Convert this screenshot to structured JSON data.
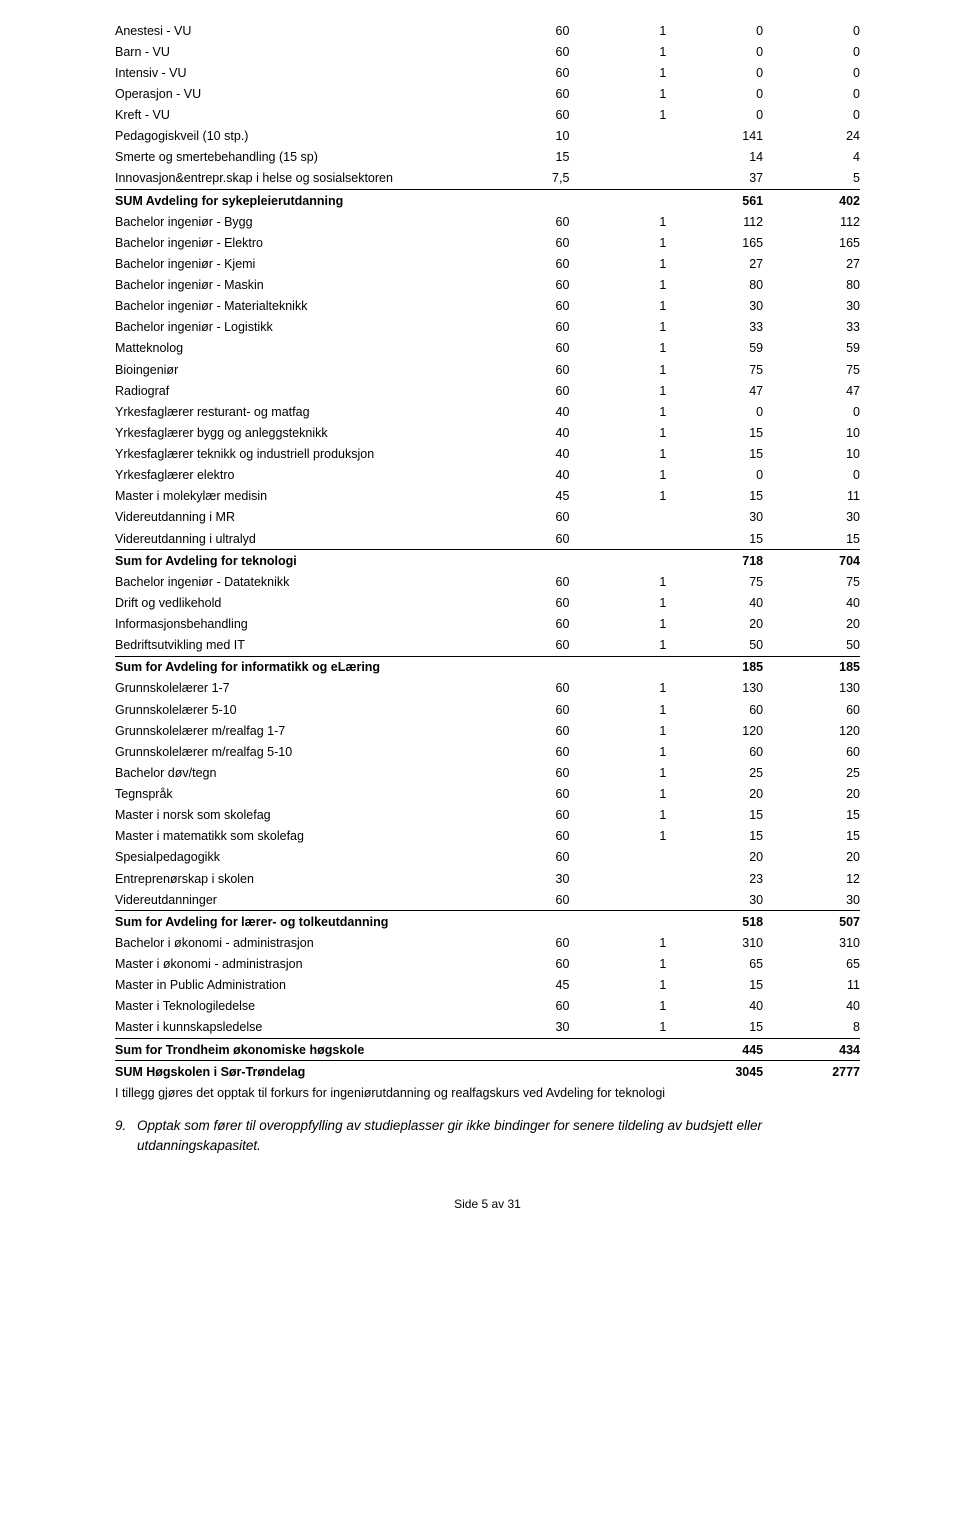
{
  "rows": [
    {
      "label": "Anestesi - VU",
      "a": "60",
      "b": "1",
      "c": "0",
      "d": "0",
      "bold": false,
      "ul": false
    },
    {
      "label": "Barn - VU",
      "a": "60",
      "b": "1",
      "c": "0",
      "d": "0",
      "bold": false,
      "ul": false
    },
    {
      "label": "Intensiv - VU",
      "a": "60",
      "b": "1",
      "c": "0",
      "d": "0",
      "bold": false,
      "ul": false
    },
    {
      "label": "Operasjon - VU",
      "a": "60",
      "b": "1",
      "c": "0",
      "d": "0",
      "bold": false,
      "ul": false
    },
    {
      "label": "Kreft - VU",
      "a": "60",
      "b": "1",
      "c": "0",
      "d": "0",
      "bold": false,
      "ul": false
    },
    {
      "label": "Pedagogiskveil (10 stp.)",
      "a": "10",
      "b": "",
      "c": "141",
      "d": "24",
      "bold": false,
      "ul": false
    },
    {
      "label": "Smerte og smertebehandling (15 sp)",
      "a": "15",
      "b": "",
      "c": "14",
      "d": "4",
      "bold": false,
      "ul": false
    },
    {
      "label": "Innovasjon&entrepr.skap i helse og sosialsektoren",
      "a": "7,5",
      "b": "",
      "c": "37",
      "d": "5",
      "bold": false,
      "ul": true
    },
    {
      "label": "SUM Avdeling for sykepleierutdanning",
      "a": "",
      "b": "",
      "c": "561",
      "d": "402",
      "bold": true,
      "ul": false
    },
    {
      "label": "Bachelor ingeniør - Bygg",
      "a": "60",
      "b": "1",
      "c": "112",
      "d": "112",
      "bold": false,
      "ul": false
    },
    {
      "label": "Bachelor ingeniør - Elektro",
      "a": "60",
      "b": "1",
      "c": "165",
      "d": "165",
      "bold": false,
      "ul": false
    },
    {
      "label": "Bachelor ingeniør - Kjemi",
      "a": "60",
      "b": "1",
      "c": "27",
      "d": "27",
      "bold": false,
      "ul": false
    },
    {
      "label": "Bachelor ingeniør - Maskin",
      "a": "60",
      "b": "1",
      "c": "80",
      "d": "80",
      "bold": false,
      "ul": false
    },
    {
      "label": "Bachelor ingeniør - Materialteknikk",
      "a": "60",
      "b": "1",
      "c": "30",
      "d": "30",
      "bold": false,
      "ul": false
    },
    {
      "label": "Bachelor ingeniør - Logistikk",
      "a": "60",
      "b": "1",
      "c": "33",
      "d": "33",
      "bold": false,
      "ul": false
    },
    {
      "label": "Matteknolog",
      "a": "60",
      "b": "1",
      "c": "59",
      "d": "59",
      "bold": false,
      "ul": false
    },
    {
      "label": "Bioingeniør",
      "a": "60",
      "b": "1",
      "c": "75",
      "d": "75",
      "bold": false,
      "ul": false
    },
    {
      "label": "Radiograf",
      "a": "60",
      "b": "1",
      "c": "47",
      "d": "47",
      "bold": false,
      "ul": false
    },
    {
      "label": "Yrkesfaglærer resturant- og matfag",
      "a": "40",
      "b": "1",
      "c": "0",
      "d": "0",
      "bold": false,
      "ul": false
    },
    {
      "label": "Yrkesfaglærer bygg og anleggsteknikk",
      "a": "40",
      "b": "1",
      "c": "15",
      "d": "10",
      "bold": false,
      "ul": false
    },
    {
      "label": "Yrkesfaglærer teknikk og industriell produksjon",
      "a": "40",
      "b": "1",
      "c": "15",
      "d": "10",
      "bold": false,
      "ul": false
    },
    {
      "label": "Yrkesfaglærer elektro",
      "a": "40",
      "b": "1",
      "c": "0",
      "d": "0",
      "bold": false,
      "ul": false
    },
    {
      "label": "Master i molekylær medisin",
      "a": "45",
      "b": "1",
      "c": "15",
      "d": "11",
      "bold": false,
      "ul": false
    },
    {
      "label": "Videreutdanning i MR",
      "a": "60",
      "b": "",
      "c": "30",
      "d": "30",
      "bold": false,
      "ul": false
    },
    {
      "label": "Videreutdanning i ultralyd",
      "a": "60",
      "b": "",
      "c": "15",
      "d": "15",
      "bold": false,
      "ul": true
    },
    {
      "label": "Sum for Avdeling for teknologi",
      "a": "",
      "b": "",
      "c": "718",
      "d": "704",
      "bold": true,
      "ul": false
    },
    {
      "label": "Bachelor ingeniør - Datateknikk",
      "a": "60",
      "b": "1",
      "c": "75",
      "d": "75",
      "bold": false,
      "ul": false
    },
    {
      "label": "Drift og vedlikehold",
      "a": "60",
      "b": "1",
      "c": "40",
      "d": "40",
      "bold": false,
      "ul": false
    },
    {
      "label": "Informasjonsbehandling",
      "a": "60",
      "b": "1",
      "c": "20",
      "d": "20",
      "bold": false,
      "ul": false
    },
    {
      "label": "Bedriftsutvikling med IT",
      "a": "60",
      "b": "1",
      "c": "50",
      "d": "50",
      "bold": false,
      "ul": true
    },
    {
      "label": "Sum for Avdeling for informatikk og eLæring",
      "a": "",
      "b": "",
      "c": "185",
      "d": "185",
      "bold": true,
      "ul": false
    },
    {
      "label": "Grunnskolelærer 1-7",
      "a": "60",
      "b": "1",
      "c": "130",
      "d": "130",
      "bold": false,
      "ul": false
    },
    {
      "label": "Grunnskolelærer 5-10",
      "a": "60",
      "b": "1",
      "c": "60",
      "d": "60",
      "bold": false,
      "ul": false
    },
    {
      "label": "Grunnskolelærer m/realfag 1-7",
      "a": "60",
      "b": "1",
      "c": "120",
      "d": "120",
      "bold": false,
      "ul": false
    },
    {
      "label": "Grunnskolelærer m/realfag 5-10",
      "a": "60",
      "b": "1",
      "c": "60",
      "d": "60",
      "bold": false,
      "ul": false
    },
    {
      "label": "Bachelor døv/tegn",
      "a": "60",
      "b": "1",
      "c": "25",
      "d": "25",
      "bold": false,
      "ul": false
    },
    {
      "label": "Tegnspråk",
      "a": "60",
      "b": "1",
      "c": "20",
      "d": "20",
      "bold": false,
      "ul": false
    },
    {
      "label": "Master i norsk som skolefag",
      "a": "60",
      "b": "1",
      "c": "15",
      "d": "15",
      "bold": false,
      "ul": false
    },
    {
      "label": "Master i matematikk som skolefag",
      "a": "60",
      "b": "1",
      "c": "15",
      "d": "15",
      "bold": false,
      "ul": false
    },
    {
      "label": "Spesialpedagogikk",
      "a": "60",
      "b": "",
      "c": "20",
      "d": "20",
      "bold": false,
      "ul": false
    },
    {
      "label": "Entreprenørskap i skolen",
      "a": "30",
      "b": "",
      "c": "23",
      "d": "12",
      "bold": false,
      "ul": false
    },
    {
      "label": "Videreutdanninger",
      "a": "60",
      "b": "",
      "c": "30",
      "d": "30",
      "bold": false,
      "ul": true
    },
    {
      "label": "Sum for Avdeling for lærer- og tolkeutdanning",
      "a": "",
      "b": "",
      "c": "518",
      "d": "507",
      "bold": true,
      "ul": false
    },
    {
      "label": "Bachelor i økonomi - administrasjon",
      "a": "60",
      "b": "1",
      "c": "310",
      "d": "310",
      "bold": false,
      "ul": false
    },
    {
      "label": "Master i økonomi - administrasjon",
      "a": "60",
      "b": "1",
      "c": "65",
      "d": "65",
      "bold": false,
      "ul": false
    },
    {
      "label": "Master in Public Administration",
      "a": "45",
      "b": "1",
      "c": "15",
      "d": "11",
      "bold": false,
      "ul": false
    },
    {
      "label": "Master i Teknologiledelse",
      "a": "60",
      "b": "1",
      "c": "40",
      "d": "40",
      "bold": false,
      "ul": false
    },
    {
      "label": "Master i kunnskapsledelse",
      "a": "30",
      "b": "1",
      "c": "15",
      "d": "8",
      "bold": false,
      "ul": true
    },
    {
      "label": "Sum for Trondheim økonomiske høgskole",
      "a": "",
      "b": "",
      "c": "445",
      "d": "434",
      "bold": true,
      "ul": true
    },
    {
      "label": "SUM Høgskolen i Sør-Trøndelag",
      "a": "",
      "b": "",
      "c": "3045",
      "d": "2777",
      "bold": true,
      "ul": false
    }
  ],
  "note": "I tillegg gjøres det opptak til forkurs for ingeniørutdanning og realfagskurs ved Avdeling for teknologi",
  "item9_num": "9.",
  "item9_text": "Opptak som fører til overoppfylling av studieplasser gir ikke bindinger for senere tildeling av budsjett eller utdanningskapasitet.",
  "footer": "Side 5 av 31"
}
